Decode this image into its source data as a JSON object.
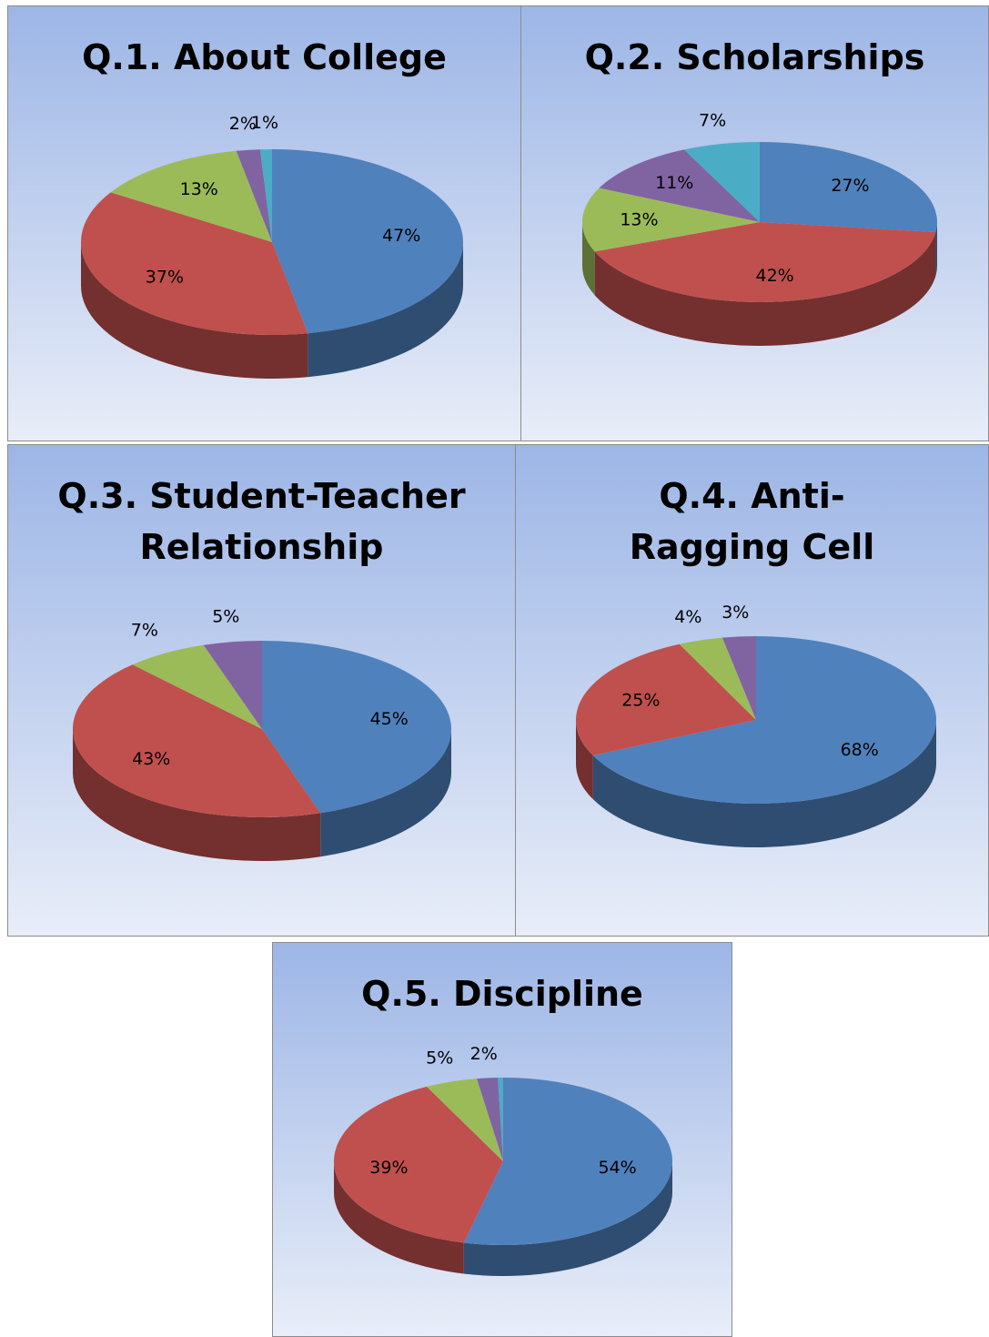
{
  "chart_data": [
    {
      "type": "pie",
      "title": "Q.1. About College",
      "categories": [
        null,
        null,
        null,
        null,
        null
      ],
      "values": [
        47,
        37,
        13,
        2,
        1
      ],
      "value_labels": [
        "47%",
        "37%",
        "13%",
        "2%",
        "1%"
      ],
      "colors": [
        "#4f81bd",
        "#c0504d",
        "#9bbb59",
        "#8064a2",
        "#4bacc6"
      ]
    },
    {
      "type": "pie",
      "title": "Q.2. Scholarships",
      "categories": [
        null,
        null,
        null,
        null,
        null
      ],
      "values": [
        27,
        42,
        13,
        11,
        7
      ],
      "value_labels": [
        "27%",
        "42%",
        "13%",
        "11%",
        "7%"
      ],
      "colors": [
        "#4f81bd",
        "#c0504d",
        "#9bbb59",
        "#8064a2",
        "#4bacc6"
      ]
    },
    {
      "type": "pie",
      "title": "Q.3. Student-Teacher Relationship",
      "categories": [
        null,
        null,
        null,
        null
      ],
      "values": [
        45,
        43,
        7,
        5
      ],
      "value_labels": [
        "45%",
        "43%",
        "7%",
        "5%"
      ],
      "colors": [
        "#4f81bd",
        "#c0504d",
        "#9bbb59",
        "#8064a2"
      ]
    },
    {
      "type": "pie",
      "title": "Q.4. Anti-Ragging Cell",
      "categories": [
        null,
        null,
        null,
        null
      ],
      "values": [
        68,
        25,
        4,
        3
      ],
      "value_labels": [
        "68%",
        "25%",
        "4%",
        "3%"
      ],
      "colors": [
        "#4f81bd",
        "#c0504d",
        "#9bbb59",
        "#8064a2"
      ]
    },
    {
      "type": "pie",
      "title": "Q.5. Discipline",
      "categories": [
        null,
        null,
        null,
        null,
        null
      ],
      "values": [
        54,
        39,
        5,
        2,
        0.5
      ],
      "value_labels": [
        "54%",
        "39%",
        "5%",
        "2%",
        null
      ],
      "colors": [
        "#4f81bd",
        "#c0504d",
        "#9bbb59",
        "#8064a2",
        "#4bacc6"
      ]
    }
  ]
}
